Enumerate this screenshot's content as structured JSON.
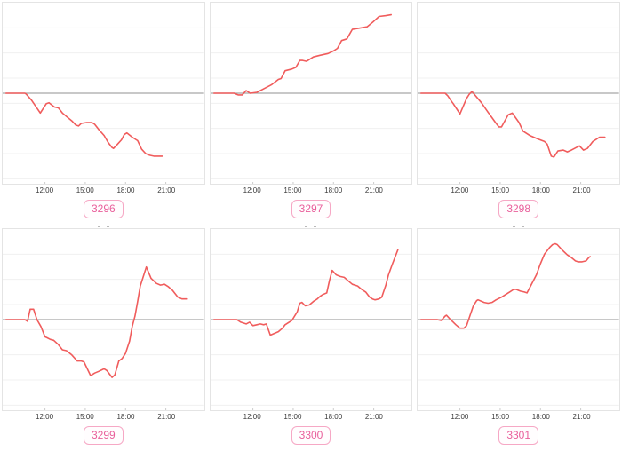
{
  "page": {
    "background": "#ffffff"
  },
  "colors": {
    "line": "#f05c5c",
    "zero_line": "#a8a8a8",
    "grid": "#f0f0f0",
    "panel_border": "#e4e4e4",
    "badge_border": "#f6a8c5",
    "badge_text": "#e95f9b",
    "tick_text": "#3a3a3a"
  },
  "axis": {
    "tick_labels": [
      "12:00",
      "15:00",
      "18:00",
      "21:00"
    ],
    "tick_hours": [
      12,
      15,
      18,
      21
    ],
    "x_range_hours": [
      8.85,
      23.85
    ],
    "y_range": [
      -1.05,
      1.05
    ],
    "y_axis": "unlabeled, values relative to gray zero reference line",
    "grid": "faint horizontal gridlines only"
  },
  "chart_data": [
    {
      "type": "line",
      "label": "3296",
      "x_unit": "time of day (hours)",
      "points": [
        [
          9.1,
          0
        ],
        [
          10.5,
          0
        ],
        [
          10.6,
          -0.01
        ],
        [
          11.0,
          -0.08
        ],
        [
          11.65,
          -0.23
        ],
        [
          12.1,
          -0.12
        ],
        [
          12.3,
          -0.11
        ],
        [
          12.7,
          -0.16
        ],
        [
          13.0,
          -0.17
        ],
        [
          13.3,
          -0.23
        ],
        [
          13.6,
          -0.27
        ],
        [
          14.0,
          -0.32
        ],
        [
          14.3,
          -0.37
        ],
        [
          14.5,
          -0.38
        ],
        [
          14.7,
          -0.35
        ],
        [
          15.1,
          -0.34
        ],
        [
          15.5,
          -0.34
        ],
        [
          15.7,
          -0.36
        ],
        [
          16.0,
          -0.42
        ],
        [
          16.4,
          -0.49
        ],
        [
          16.7,
          -0.57
        ],
        [
          17.0,
          -0.63
        ],
        [
          17.1,
          -0.64
        ],
        [
          17.35,
          -0.6
        ],
        [
          17.7,
          -0.54
        ],
        [
          17.9,
          -0.48
        ],
        [
          18.1,
          -0.46
        ],
        [
          18.5,
          -0.51
        ],
        [
          18.8,
          -0.54
        ],
        [
          18.9,
          -0.55
        ],
        [
          19.2,
          -0.65
        ],
        [
          19.5,
          -0.7
        ],
        [
          19.8,
          -0.72
        ],
        [
          20.1,
          -0.73
        ],
        [
          20.4,
          -0.73
        ],
        [
          20.74,
          -0.73
        ]
      ]
    },
    {
      "type": "line",
      "label": "3297",
      "x_unit": "time of day (hours)",
      "points": [
        [
          9.1,
          0
        ],
        [
          10.6,
          0
        ],
        [
          10.9,
          -0.02
        ],
        [
          11.2,
          -0.02
        ],
        [
          11.5,
          0.03
        ],
        [
          11.8,
          0
        ],
        [
          12.3,
          0.01
        ],
        [
          12.8,
          0.05
        ],
        [
          13.4,
          0.1
        ],
        [
          13.9,
          0.16
        ],
        [
          14.1,
          0.17
        ],
        [
          14.4,
          0.26
        ],
        [
          14.9,
          0.28
        ],
        [
          15.2,
          0.3
        ],
        [
          15.5,
          0.38
        ],
        [
          15.7,
          0.38
        ],
        [
          16.0,
          0.37
        ],
        [
          16.5,
          0.42
        ],
        [
          17.0,
          0.44
        ],
        [
          17.6,
          0.46
        ],
        [
          18.0,
          0.49
        ],
        [
          18.3,
          0.52
        ],
        [
          18.6,
          0.61
        ],
        [
          19.0,
          0.63
        ],
        [
          19.4,
          0.74
        ],
        [
          19.8,
          0.75
        ],
        [
          20.5,
          0.77
        ],
        [
          20.9,
          0.82
        ],
        [
          21.4,
          0.89
        ],
        [
          21.9,
          0.9
        ],
        [
          22.3,
          0.91
        ]
      ]
    },
    {
      "type": "line",
      "label": "3298",
      "x_unit": "time of day (hours)",
      "points": [
        [
          9.1,
          0
        ],
        [
          10.9,
          0
        ],
        [
          11.1,
          -0.03
        ],
        [
          11.4,
          -0.1
        ],
        [
          11.5,
          -0.12
        ],
        [
          11.8,
          -0.19
        ],
        [
          12.0,
          -0.24
        ],
        [
          12.5,
          -0.06
        ],
        [
          12.7,
          -0.01
        ],
        [
          12.9,
          0.02
        ],
        [
          13.6,
          -0.11
        ],
        [
          14.1,
          -0.22
        ],
        [
          14.7,
          -0.35
        ],
        [
          14.9,
          -0.39
        ],
        [
          15.1,
          -0.39
        ],
        [
          15.6,
          -0.25
        ],
        [
          15.9,
          -0.23
        ],
        [
          16.4,
          -0.34
        ],
        [
          16.7,
          -0.44
        ],
        [
          17.2,
          -0.49
        ],
        [
          17.8,
          -0.53
        ],
        [
          18.3,
          -0.56
        ],
        [
          18.5,
          -0.59
        ],
        [
          18.8,
          -0.73
        ],
        [
          19.0,
          -0.74
        ],
        [
          19.3,
          -0.67
        ],
        [
          19.7,
          -0.66
        ],
        [
          20.0,
          -0.68
        ],
        [
          20.3,
          -0.66
        ],
        [
          20.9,
          -0.61
        ],
        [
          21.2,
          -0.66
        ],
        [
          21.5,
          -0.64
        ],
        [
          21.9,
          -0.56
        ],
        [
          22.4,
          -0.51
        ],
        [
          22.8,
          -0.51
        ]
      ]
    },
    {
      "type": "line",
      "label": "3299",
      "x_unit": "time of day (hours)",
      "points": [
        [
          9.1,
          0
        ],
        [
          10.5,
          0
        ],
        [
          10.7,
          -0.02
        ],
        [
          10.9,
          0.12
        ],
        [
          11.15,
          0.12
        ],
        [
          11.4,
          0
        ],
        [
          11.7,
          -0.08
        ],
        [
          12.0,
          -0.2
        ],
        [
          12.15,
          -0.21
        ],
        [
          12.4,
          -0.23
        ],
        [
          12.65,
          -0.24
        ],
        [
          13.0,
          -0.29
        ],
        [
          13.3,
          -0.35
        ],
        [
          13.6,
          -0.36
        ],
        [
          14.0,
          -0.41
        ],
        [
          14.4,
          -0.48
        ],
        [
          14.7,
          -0.48
        ],
        [
          14.9,
          -0.49
        ],
        [
          15.4,
          -0.65
        ],
        [
          15.7,
          -0.62
        ],
        [
          16.0,
          -0.6
        ],
        [
          16.4,
          -0.57
        ],
        [
          16.6,
          -0.59
        ],
        [
          17.0,
          -0.67
        ],
        [
          17.2,
          -0.64
        ],
        [
          17.5,
          -0.48
        ],
        [
          17.75,
          -0.45
        ],
        [
          18.0,
          -0.39
        ],
        [
          18.3,
          -0.25
        ],
        [
          18.5,
          -0.08
        ],
        [
          18.7,
          0.04
        ],
        [
          18.9,
          0.21
        ],
        [
          19.1,
          0.39
        ],
        [
          19.55,
          0.61
        ],
        [
          19.9,
          0.48
        ],
        [
          20.3,
          0.42
        ],
        [
          20.6,
          0.4
        ],
        [
          20.9,
          0.41
        ],
        [
          21.2,
          0.38
        ],
        [
          21.5,
          0.34
        ],
        [
          21.9,
          0.26
        ],
        [
          22.2,
          0.24
        ],
        [
          22.6,
          0.24
        ]
      ]
    },
    {
      "type": "line",
      "label": "3300",
      "x_unit": "time of day (hours)",
      "points": [
        [
          9.1,
          0
        ],
        [
          10.8,
          0
        ],
        [
          11.1,
          -0.03
        ],
        [
          11.5,
          -0.05
        ],
        [
          11.75,
          -0.03
        ],
        [
          12.0,
          -0.07
        ],
        [
          12.3,
          -0.06
        ],
        [
          12.55,
          -0.05
        ],
        [
          12.8,
          -0.06
        ],
        [
          13.0,
          -0.05
        ],
        [
          13.3,
          -0.18
        ],
        [
          13.9,
          -0.14
        ],
        [
          14.2,
          -0.1
        ],
        [
          14.4,
          -0.06
        ],
        [
          14.7,
          -0.03
        ],
        [
          14.9,
          -0.01
        ],
        [
          15.3,
          0.09
        ],
        [
          15.5,
          0.19
        ],
        [
          15.65,
          0.2
        ],
        [
          15.9,
          0.16
        ],
        [
          16.2,
          0.17
        ],
        [
          16.5,
          0.21
        ],
        [
          16.8,
          0.24
        ],
        [
          17.0,
          0.27
        ],
        [
          17.2,
          0.29
        ],
        [
          17.5,
          0.31
        ],
        [
          17.7,
          0.45
        ],
        [
          17.9,
          0.57
        ],
        [
          18.2,
          0.52
        ],
        [
          18.5,
          0.5
        ],
        [
          18.8,
          0.49
        ],
        [
          19.1,
          0.45
        ],
        [
          19.4,
          0.41
        ],
        [
          19.8,
          0.39
        ],
        [
          20.1,
          0.35
        ],
        [
          20.4,
          0.32
        ],
        [
          20.7,
          0.26
        ],
        [
          20.9,
          0.24
        ],
        [
          21.1,
          0.23
        ],
        [
          21.4,
          0.24
        ],
        [
          21.6,
          0.26
        ],
        [
          21.9,
          0.4
        ],
        [
          22.1,
          0.52
        ],
        [
          22.4,
          0.65
        ],
        [
          22.6,
          0.73
        ],
        [
          22.8,
          0.81
        ]
      ]
    },
    {
      "type": "line",
      "label": "3301",
      "x_unit": "time of day (hours)",
      "points": [
        [
          9.1,
          0
        ],
        [
          10.3,
          0
        ],
        [
          10.6,
          -0.01
        ],
        [
          10.9,
          0.04
        ],
        [
          11.0,
          0.05
        ],
        [
          11.3,
          0
        ],
        [
          11.7,
          -0.06
        ],
        [
          12.0,
          -0.1
        ],
        [
          12.3,
          -0.1
        ],
        [
          12.5,
          -0.07
        ],
        [
          12.8,
          0.07
        ],
        [
          13.0,
          0.16
        ],
        [
          13.25,
          0.22
        ],
        [
          13.35,
          0.23
        ],
        [
          13.8,
          0.2
        ],
        [
          14.1,
          0.19
        ],
        [
          14.4,
          0.2
        ],
        [
          14.7,
          0.23
        ],
        [
          15.1,
          0.26
        ],
        [
          15.4,
          0.29
        ],
        [
          15.7,
          0.32
        ],
        [
          16.0,
          0.35
        ],
        [
          16.2,
          0.35
        ],
        [
          16.5,
          0.33
        ],
        [
          16.8,
          0.32
        ],
        [
          17.0,
          0.31
        ],
        [
          17.3,
          0.4
        ],
        [
          17.7,
          0.52
        ],
        [
          18.0,
          0.65
        ],
        [
          18.3,
          0.76
        ],
        [
          18.7,
          0.84
        ],
        [
          18.9,
          0.87
        ],
        [
          19.1,
          0.88
        ],
        [
          19.25,
          0.87
        ],
        [
          19.6,
          0.81
        ],
        [
          20.0,
          0.75
        ],
        [
          20.3,
          0.72
        ],
        [
          20.6,
          0.68
        ],
        [
          20.8,
          0.67
        ],
        [
          21.1,
          0.67
        ],
        [
          21.4,
          0.68
        ],
        [
          21.6,
          0.72
        ],
        [
          21.7,
          0.73
        ]
      ]
    }
  ]
}
